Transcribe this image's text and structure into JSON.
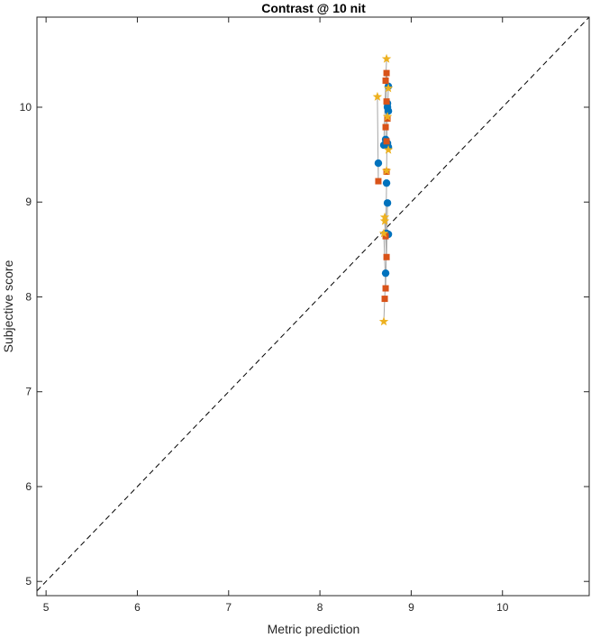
{
  "chart_data": {
    "type": "scatter",
    "title": "Contrast @ 10 nit",
    "xlabel": "Metric prediction",
    "ylabel": "Subjective score",
    "xlim": [
      4.9,
      10.95
    ],
    "ylim": [
      4.85,
      10.95
    ],
    "xticks": [
      5,
      6,
      7,
      8,
      9,
      10
    ],
    "yticks": [
      5,
      6,
      7,
      8,
      9,
      10
    ],
    "grid": false,
    "reference_line": "y = x",
    "series": [
      {
        "marker": "circle",
        "color": "#0072BD",
        "points": [
          [
            8.64,
            9.41
          ],
          [
            8.7,
            9.6
          ],
          [
            8.72,
            9.66
          ],
          [
            8.75,
            9.58
          ],
          [
            8.73,
            9.2
          ],
          [
            8.74,
            8.99
          ],
          [
            8.73,
            8.67
          ],
          [
            8.75,
            8.66
          ],
          [
            8.72,
            8.25
          ],
          [
            8.75,
            10.22
          ],
          [
            8.74,
            10.04
          ],
          [
            8.74,
            10.0
          ],
          [
            8.75,
            9.96
          ],
          [
            8.74,
            9.62
          ]
        ]
      },
      {
        "marker": "square",
        "color": "#D95319",
        "points": [
          [
            8.64,
            9.22
          ],
          [
            8.73,
            10.36
          ],
          [
            8.72,
            10.28
          ],
          [
            8.73,
            10.06
          ],
          [
            8.74,
            9.88
          ],
          [
            8.72,
            9.79
          ],
          [
            8.73,
            9.64
          ],
          [
            8.73,
            9.32
          ],
          [
            8.72,
            8.64
          ],
          [
            8.73,
            8.42
          ],
          [
            8.72,
            8.09
          ],
          [
            8.71,
            7.98
          ]
        ]
      },
      {
        "marker": "star",
        "color": "#EDB120",
        "points": [
          [
            8.73,
            10.51
          ],
          [
            8.63,
            10.11
          ],
          [
            8.75,
            10.2
          ],
          [
            8.74,
            9.9
          ],
          [
            8.75,
            9.55
          ],
          [
            8.73,
            9.33
          ],
          [
            8.71,
            8.84
          ],
          [
            8.71,
            8.8
          ],
          [
            8.7,
            8.67
          ],
          [
            8.7,
            7.74
          ]
        ]
      }
    ],
    "connectors": [
      [
        [
          8.64,
          9.41
        ],
        [
          8.64,
          9.22
        ],
        [
          8.63,
          10.11
        ]
      ],
      [
        [
          8.7,
          9.6
        ],
        [
          8.72,
          10.28
        ],
        [
          8.73,
          10.51
        ]
      ],
      [
        [
          8.72,
          9.66
        ],
        [
          8.73,
          10.36
        ],
        [
          8.75,
          10.2
        ]
      ],
      [
        [
          8.75,
          9.58
        ],
        [
          8.73,
          9.64
        ],
        [
          8.75,
          9.55
        ]
      ],
      [
        [
          8.73,
          9.2
        ],
        [
          8.72,
          8.64
        ],
        [
          8.71,
          8.84
        ]
      ],
      [
        [
          8.74,
          8.99
        ],
        [
          8.73,
          8.42
        ],
        [
          8.71,
          8.8
        ]
      ],
      [
        [
          8.73,
          8.67
        ],
        [
          8.72,
          8.09
        ],
        [
          8.7,
          8.67
        ]
      ],
      [
        [
          8.72,
          8.25
        ],
        [
          8.71,
          7.98
        ],
        [
          8.7,
          7.74
        ]
      ],
      [
        [
          8.75,
          10.22
        ],
        [
          8.74,
          9.88
        ],
        [
          8.74,
          9.9
        ]
      ],
      [
        [
          8.74,
          10.04
        ],
        [
          8.73,
          9.32
        ],
        [
          8.73,
          9.33
        ]
      ]
    ]
  },
  "colors": {
    "axis": "#262626",
    "connector": "#A6A6A6",
    "reference_line": "#000000"
  }
}
